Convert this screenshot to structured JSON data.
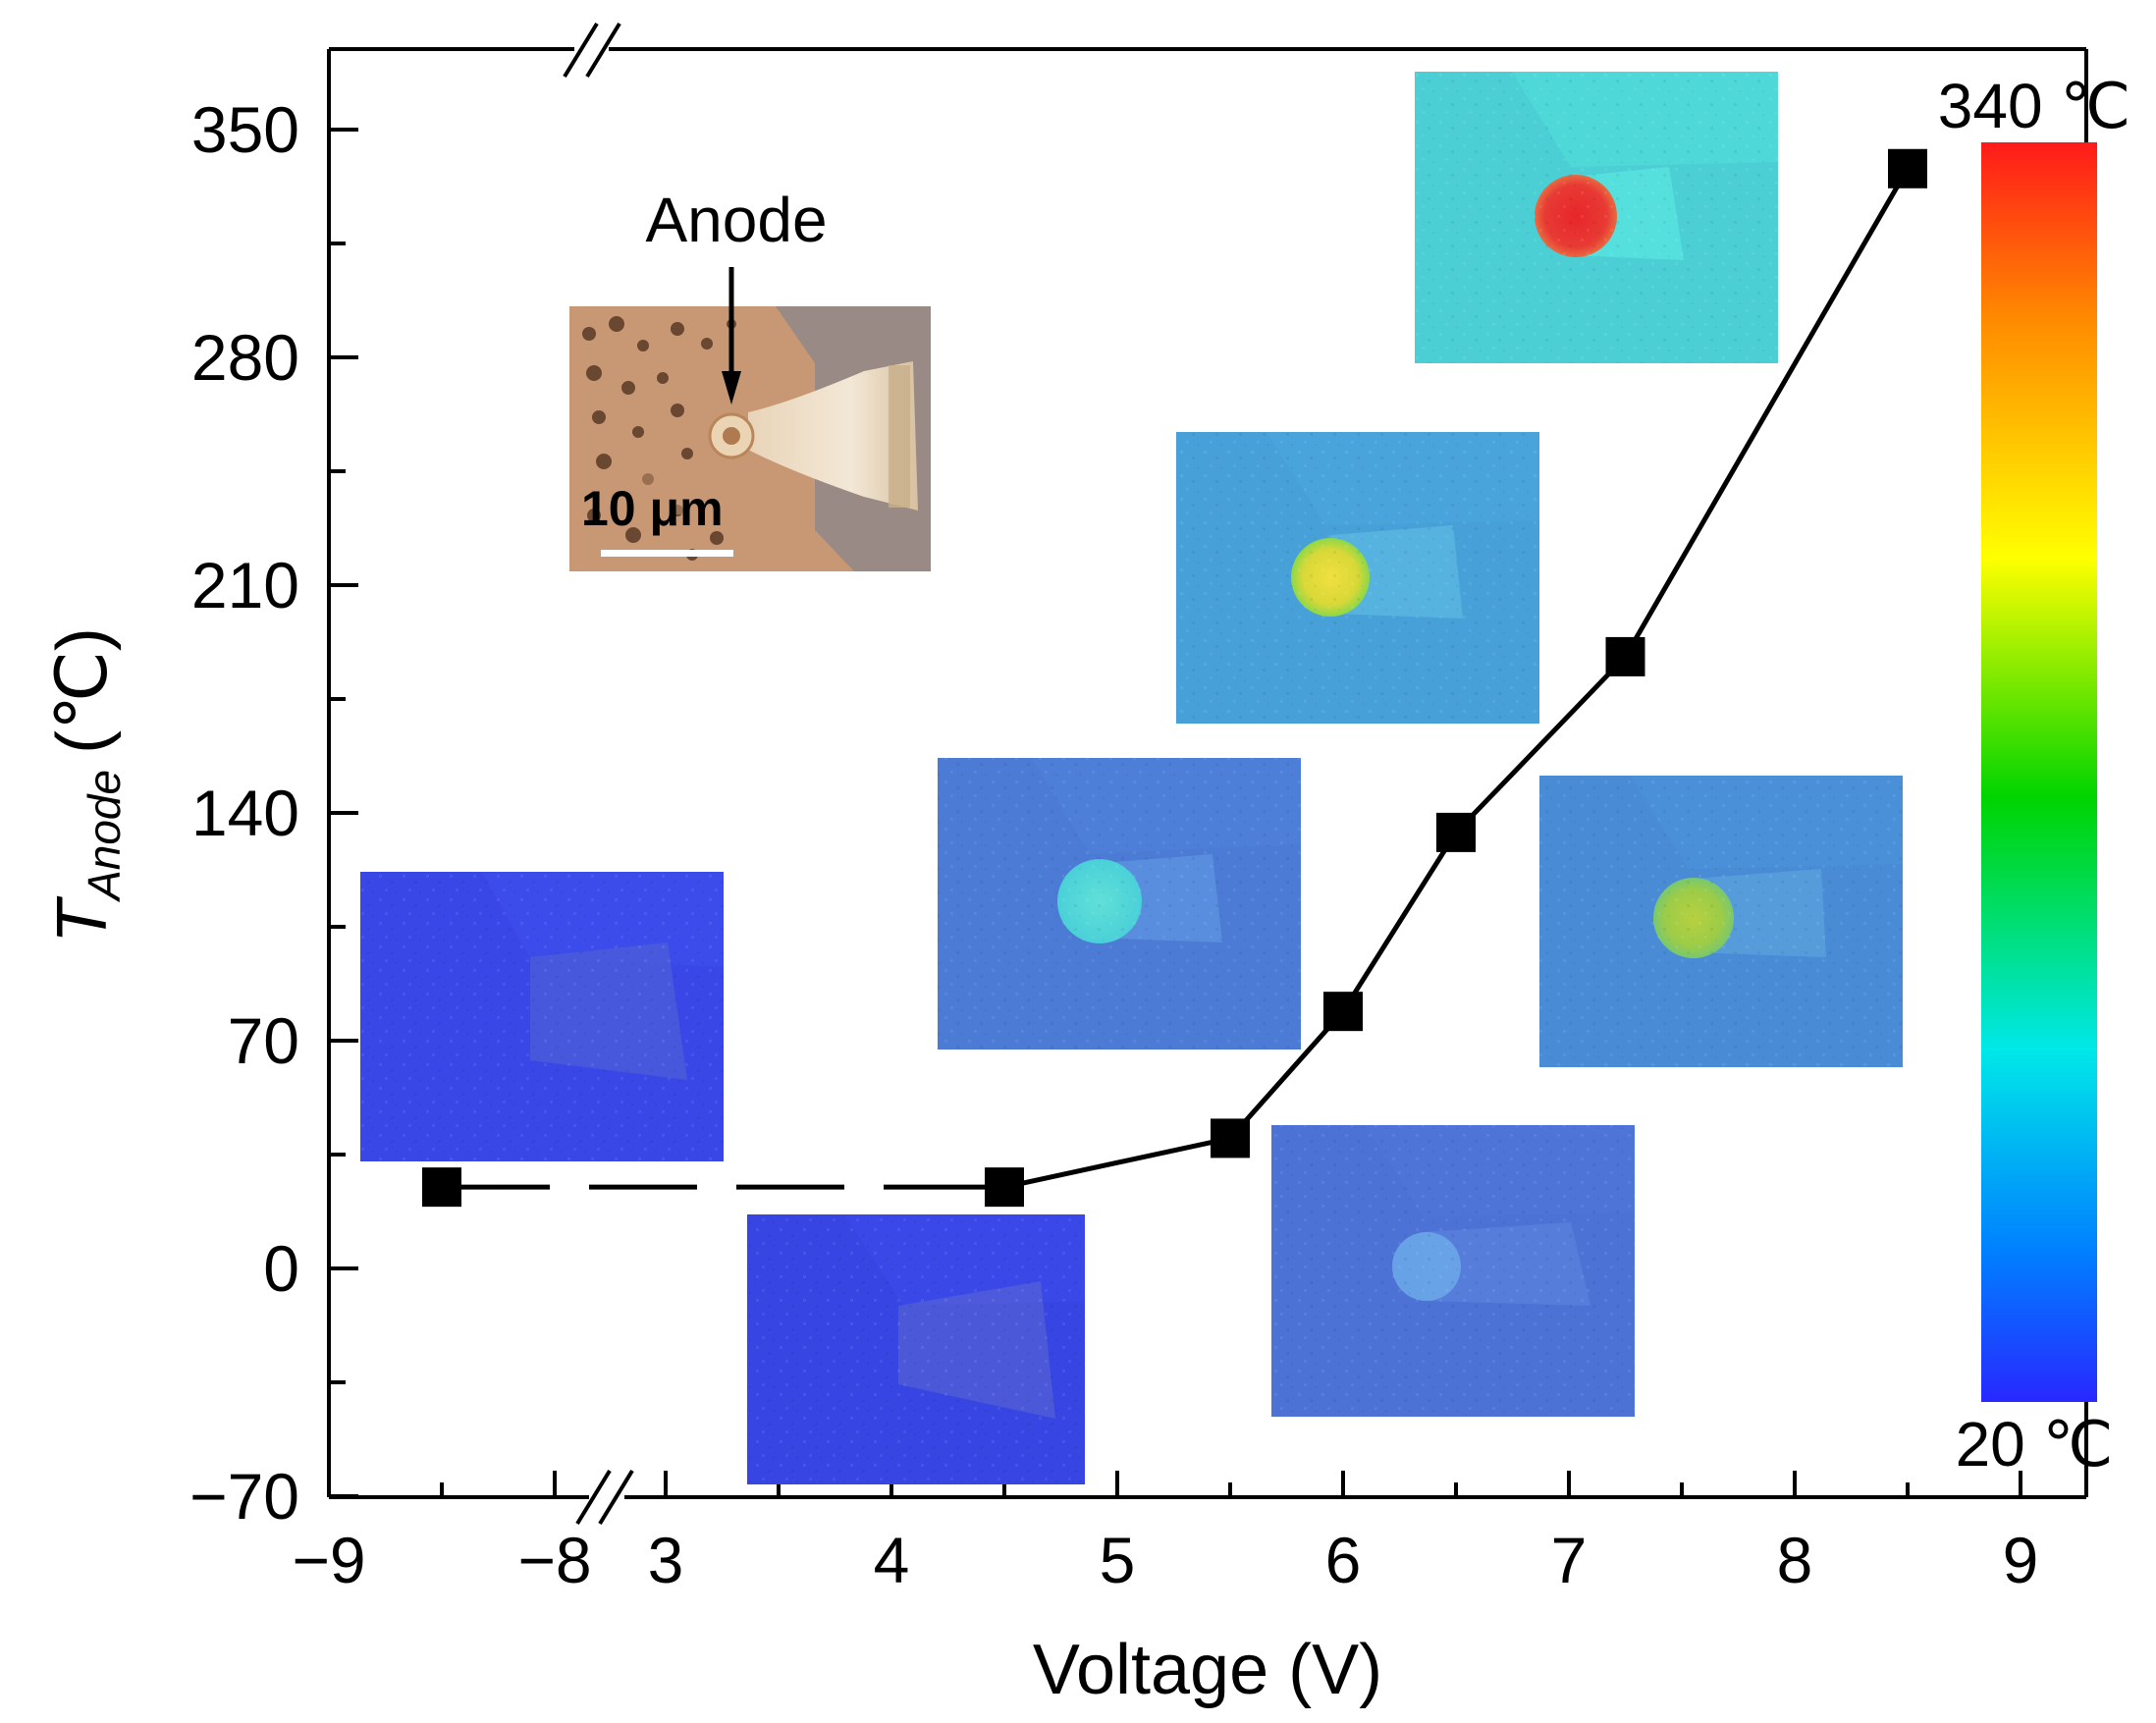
{
  "chart_data": {
    "type": "line",
    "title": "",
    "xlabel": "Voltage (V)",
    "ylabel": {
      "symbol": "T",
      "subscript": "Anode",
      "unit": "(℃)"
    },
    "x_axis": {
      "broken": true,
      "segments": [
        {
          "range": [
            -9,
            -7.5
          ],
          "ticks": [
            -9,
            -8
          ]
        },
        {
          "range": [
            2.5,
            9.4
          ],
          "ticks": [
            3,
            4,
            5,
            6,
            7,
            8,
            9
          ]
        }
      ],
      "tick_labels": [
        "−9",
        "−8",
        "3",
        "4",
        "5",
        "6",
        "7",
        "8",
        "9"
      ]
    },
    "y_axis": {
      "range": [
        -70,
        380
      ],
      "ticks": [
        -70,
        0,
        70,
        140,
        210,
        280,
        350
      ],
      "tick_labels": [
        "−70",
        "0",
        "70",
        "140",
        "210",
        "280",
        "350"
      ]
    },
    "series": [
      {
        "name": "T_Anode",
        "marker": "square",
        "color": "#000000",
        "x": [
          -8.5,
          4.5,
          5.5,
          6.0,
          6.5,
          7.25,
          8.5
        ],
        "y": [
          25,
          25,
          40,
          79,
          134,
          188,
          338
        ]
      }
    ],
    "colorbar": {
      "max_label": "340 ℃",
      "min_label": "20 ℃",
      "colors": [
        "#ff1a1a",
        "#ff8a00",
        "#ffff00",
        "#00d400",
        "#00e8e8",
        "#0080ff",
        "#2828ff"
      ]
    },
    "insets": {
      "micrograph": {
        "label": "Anode",
        "scalebar": "10 μm"
      },
      "thermal_maps": [
        {
          "id": "v-minus-8-5",
          "level": "cold"
        },
        {
          "id": "v-4-5",
          "level": "cold"
        },
        {
          "id": "v-5-5",
          "level": "cool"
        },
        {
          "id": "v-6-0",
          "level": "mild"
        },
        {
          "id": "v-6-5",
          "level": "warm"
        },
        {
          "id": "v-7-25",
          "level": "hot"
        },
        {
          "id": "v-8-5",
          "level": "max"
        }
      ]
    }
  }
}
